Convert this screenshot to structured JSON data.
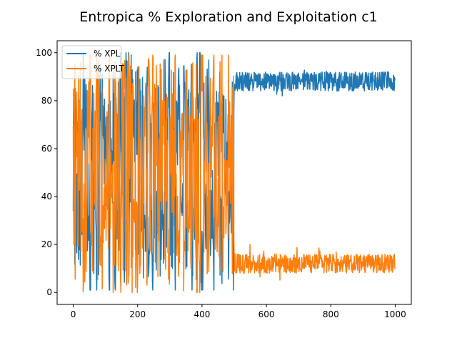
{
  "chart_data": {
    "type": "line",
    "title": "Entropica % Exploration and Exploitation c1",
    "xlabel": "",
    "ylabel": "",
    "xlim": [
      -50,
      1050
    ],
    "ylim": [
      -5,
      105
    ],
    "xticks": [
      0,
      200,
      400,
      600,
      800,
      1000
    ],
    "yticks": [
      0,
      20,
      40,
      60,
      80,
      100
    ],
    "grid": false,
    "legend_position": "upper-left",
    "n_points": 1000,
    "series": [
      {
        "name": "% XPL",
        "color": "#1f77b4",
        "summary": {
          "x_range": [
            0,
            1000
          ],
          "segments": [
            {
              "x": [
                0,
                500
              ],
              "behavior": "highly volatile",
              "y_range": [
                1,
                100
              ]
            },
            {
              "x": [
                500,
                1000
              ],
              "behavior": "stable",
              "y_mean": 88,
              "y_range": [
                82,
                95
              ]
            }
          ]
        }
      },
      {
        "name": "% XPLT",
        "color": "#ff7f0e",
        "summary": {
          "x_range": [
            0,
            1000
          ],
          "segments": [
            {
              "x": [
                0,
                500
              ],
              "behavior": "highly volatile",
              "y_range": [
                0,
                99
              ]
            },
            {
              "x": [
                500,
                1000
              ],
              "behavior": "stable",
              "y_mean": 12,
              "y_range": [
                3,
                20
              ]
            }
          ]
        }
      }
    ]
  }
}
